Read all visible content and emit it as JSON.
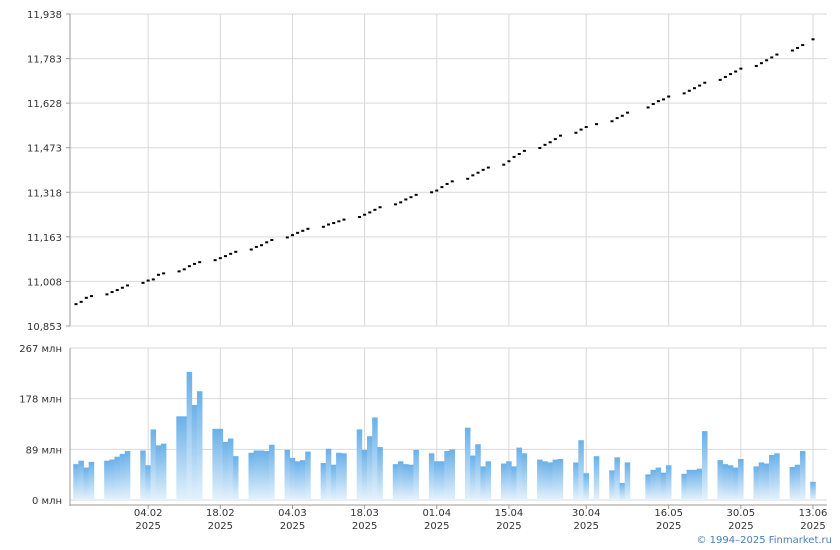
{
  "chart_data": [
    {
      "type": "scatter",
      "title": "",
      "ylim": [
        10853,
        11938
      ],
      "y_ticks": [
        "11,938",
        "11,783",
        "11,628",
        "11,473",
        "11,318",
        "11,163",
        "11,008",
        "10,853"
      ],
      "grid": true,
      "series": [
        {
          "x": [
            "2025-01-21",
            "2025-01-22",
            "2025-01-23",
            "2025-01-24",
            "2025-01-27",
            "2025-01-28",
            "2025-01-29",
            "2025-01-30",
            "2025-01-31",
            "2025-02-03",
            "2025-02-04",
            "2025-02-05",
            "2025-02-06",
            "2025-02-07",
            "2025-02-10",
            "2025-02-11",
            "2025-02-12",
            "2025-02-13",
            "2025-02-14",
            "2025-02-17",
            "2025-02-18",
            "2025-02-19",
            "2025-02-20",
            "2025-02-21",
            "2025-02-24",
            "2025-02-25",
            "2025-02-26",
            "2025-02-27",
            "2025-02-28",
            "2025-03-03",
            "2025-03-04",
            "2025-03-05",
            "2025-03-06",
            "2025-03-07",
            "2025-03-10",
            "2025-03-11",
            "2025-03-12",
            "2025-03-13",
            "2025-03-14",
            "2025-03-17",
            "2025-03-18",
            "2025-03-19",
            "2025-03-20",
            "2025-03-21",
            "2025-03-24",
            "2025-03-25",
            "2025-03-26",
            "2025-03-27",
            "2025-03-28",
            "2025-03-31",
            "2025-04-01",
            "2025-04-02",
            "2025-04-03",
            "2025-04-04",
            "2025-04-07",
            "2025-04-08",
            "2025-04-09",
            "2025-04-10",
            "2025-04-11",
            "2025-04-14",
            "2025-04-15",
            "2025-04-16",
            "2025-04-17",
            "2025-04-18",
            "2025-04-21",
            "2025-04-22",
            "2025-04-23",
            "2025-04-24",
            "2025-04-25",
            "2025-04-28",
            "2025-04-29",
            "2025-04-30",
            "2025-05-02",
            "2025-05-05",
            "2025-05-06",
            "2025-05-07",
            "2025-05-08",
            "2025-05-12",
            "2025-05-13",
            "2025-05-14",
            "2025-05-15",
            "2025-05-16",
            "2025-05-19",
            "2025-05-20",
            "2025-05-21",
            "2025-05-22",
            "2025-05-23",
            "2025-05-26",
            "2025-05-27",
            "2025-05-28",
            "2025-05-29",
            "2025-05-30",
            "2025-06-02",
            "2025-06-03",
            "2025-06-04",
            "2025-06-05",
            "2025-06-06",
            "2025-06-09",
            "2025-06-10",
            "2025-06-11",
            "2025-06-13"
          ],
          "y": [
            10929,
            10937,
            10951,
            10957,
            10963,
            10971,
            10978,
            10986,
            10994,
            11003,
            11011,
            11015,
            11031,
            11036,
            11043,
            11050,
            11061,
            11069,
            11075,
            11082,
            11089,
            11096,
            11104,
            11111,
            11119,
            11128,
            11134,
            11144,
            11152,
            11161,
            11169,
            11177,
            11184,
            11191,
            11198,
            11206,
            11211,
            11217,
            11223,
            11232,
            11240,
            11248,
            11257,
            11266,
            11276,
            11283,
            11293,
            11301,
            11309,
            11318,
            11324,
            11336,
            11347,
            11356,
            11365,
            11377,
            11386,
            11396,
            11404,
            11414,
            11426,
            11441,
            11451,
            11462,
            11472,
            11483,
            11492,
            11503,
            11515,
            11525,
            11536,
            11545,
            11555,
            11565,
            11576,
            11584,
            11595,
            11613,
            11625,
            11635,
            11641,
            11651,
            11662,
            11671,
            11680,
            11689,
            11699,
            11709,
            11719,
            11729,
            11738,
            11748,
            11757,
            11767,
            11777,
            11787,
            11797,
            11811,
            11820,
            11830,
            11850
          ]
        }
      ]
    },
    {
      "type": "bar",
      "title": "",
      "ylim": [
        0,
        267
      ],
      "y_ticks": [
        "267 млн",
        "178 млн",
        "89 млн",
        "0 млн"
      ],
      "x_ticks": [
        {
          "day": "04.02",
          "year": "2025"
        },
        {
          "day": "18.02",
          "year": "2025"
        },
        {
          "day": "04.03",
          "year": "2025"
        },
        {
          "day": "18.03",
          "year": "2025"
        },
        {
          "day": "01.04",
          "year": "2025"
        },
        {
          "day": "15.04",
          "year": "2025"
        },
        {
          "day": "30.04",
          "year": "2025"
        },
        {
          "day": "16.05",
          "year": "2025"
        },
        {
          "day": "30.05",
          "year": "2025"
        },
        {
          "day": "13.06",
          "year": "2025"
        }
      ],
      "grid": true,
      "series": [
        {
          "values": [
            63,
            69,
            57,
            67,
            69,
            71,
            76,
            81,
            86,
            87,
            61,
            124,
            96,
            99,
            147,
            147,
            225,
            167,
            191,
            125,
            125,
            102,
            108,
            77,
            83,
            87,
            87,
            86,
            97,
            88,
            74,
            68,
            70,
            85,
            65,
            90,
            62,
            83,
            82,
            124,
            88,
            112,
            145,
            93,
            63,
            68,
            63,
            62,
            88,
            82,
            68,
            68,
            86,
            89,
            127,
            78,
            98,
            59,
            68,
            64,
            68,
            59,
            92,
            82,
            71,
            68,
            66,
            71,
            72,
            66,
            105,
            47,
            77,
            52,
            75,
            30,
            66,
            45,
            53,
            57,
            48,
            61,
            46,
            53,
            53,
            55,
            121,
            70,
            63,
            61,
            57,
            72,
            59,
            66,
            64,
            79,
            82,
            58,
            62,
            86,
            32
          ]
        }
      ]
    }
  ],
  "copyright": "© 1994–2025 Finmarket.ru",
  "colors": {
    "grid": "#d9d9d9",
    "bar_top": "#6ab0e8",
    "bar_bottom": "#e4f2fc",
    "point": "#000000",
    "text": "#333333",
    "link": "#4a7fb5"
  }
}
